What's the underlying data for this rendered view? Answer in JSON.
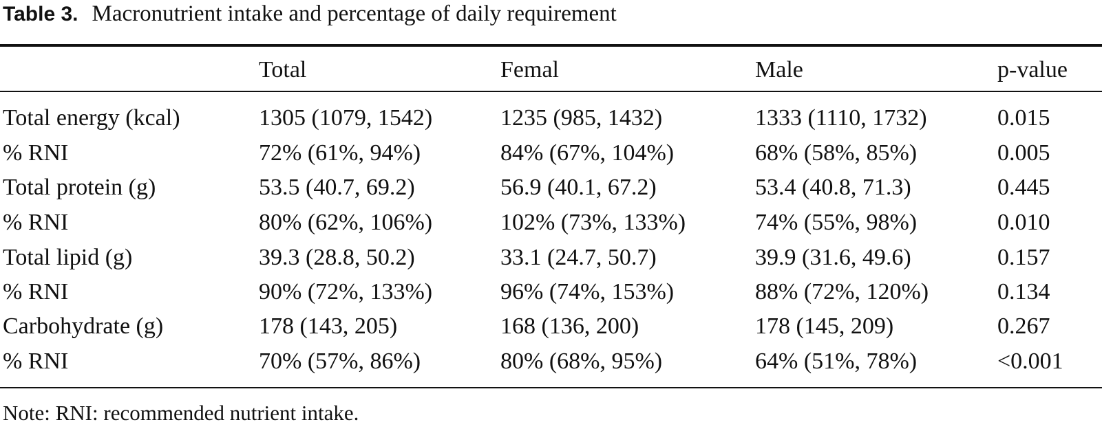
{
  "caption": {
    "label": "Table 3.",
    "text": "Macronutrient intake and percentage of daily requirement"
  },
  "table": {
    "headers": [
      "",
      "Total",
      "Femal",
      "Male",
      "p-value"
    ],
    "rows": [
      [
        "Total energy (kcal)",
        "1305 (1079, 1542)",
        "1235 (985, 1432)",
        "1333 (1110, 1732)",
        "0.015"
      ],
      [
        "% RNI",
        "72% (61%, 94%)",
        "84% (67%, 104%)",
        "68% (58%, 85%)",
        "0.005"
      ],
      [
        "Total protein (g)",
        "53.5 (40.7, 69.2)",
        "56.9 (40.1, 67.2)",
        "53.4 (40.8, 71.3)",
        "0.445"
      ],
      [
        "% RNI",
        "80% (62%, 106%)",
        "102% (73%, 133%)",
        "74% (55%, 98%)",
        "0.010"
      ],
      [
        "Total lipid (g)",
        "39.3 (28.8, 50.2)",
        "33.1 (24.7, 50.7)",
        "39.9 (31.6, 49.6)",
        "0.157"
      ],
      [
        "% RNI",
        "90% (72%, 133%)",
        "96% (74%, 153%)",
        "88% (72%, 120%)",
        "0.134"
      ],
      [
        "Carbohydrate (g)",
        "178 (143, 205)",
        "168 (136, 200)",
        "178 (145, 209)",
        "0.267"
      ],
      [
        "% RNI",
        "70% (57%, 86%)",
        "80% (68%, 95%)",
        "64% (51%, 78%)",
        "<0.001"
      ]
    ]
  },
  "note": "Note: RNI: recommended nutrient intake."
}
